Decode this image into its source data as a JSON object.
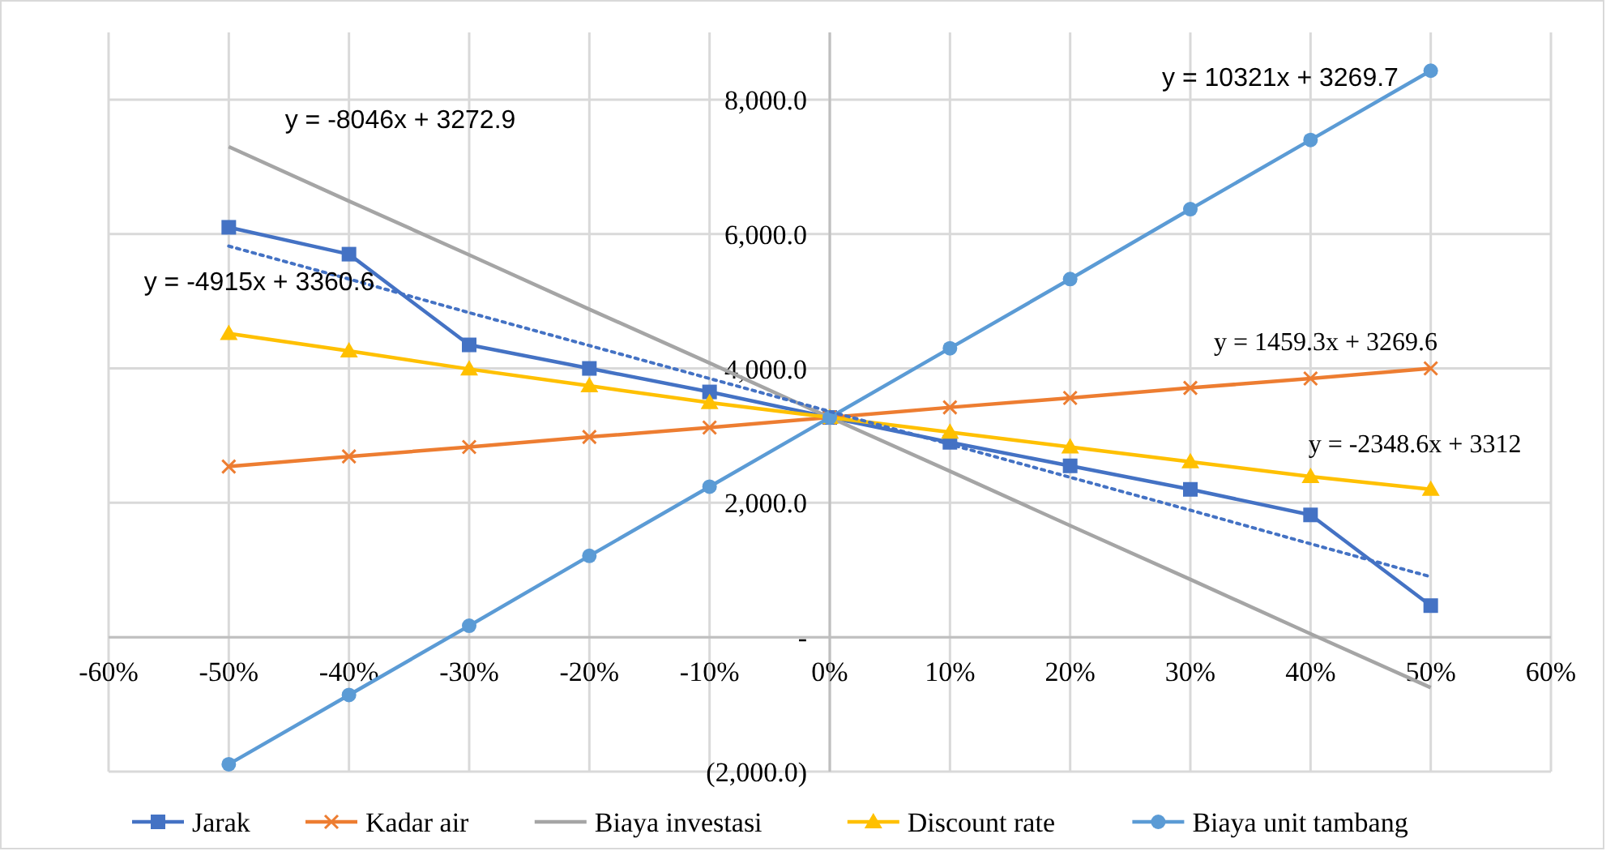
{
  "chart_data": {
    "type": "line",
    "x": [
      -50,
      -40,
      -30,
      -20,
      -10,
      0,
      10,
      20,
      30,
      40,
      50
    ],
    "xlim": [
      -60,
      60
    ],
    "xticks": [
      {
        "value": -60,
        "label": "-60%"
      },
      {
        "value": -50,
        "label": "-50%"
      },
      {
        "value": -40,
        "label": "-40%"
      },
      {
        "value": -30,
        "label": "-30%"
      },
      {
        "value": -20,
        "label": "-20%"
      },
      {
        "value": -10,
        "label": "-10%"
      },
      {
        "value": 0,
        "label": "0%"
      },
      {
        "value": 10,
        "label": "10%"
      },
      {
        "value": 20,
        "label": "20%"
      },
      {
        "value": 30,
        "label": "30%"
      },
      {
        "value": 40,
        "label": "40%"
      },
      {
        "value": 50,
        "label": "50%"
      },
      {
        "value": 60,
        "label": "60%"
      }
    ],
    "ylim": [
      -2000,
      9000
    ],
    "yticks": [
      {
        "value": -2000,
        "label": "(2,000.0)"
      },
      {
        "value": 0,
        "label": "-"
      },
      {
        "value": 2000,
        "label": "2,000.0"
      },
      {
        "value": 4000,
        "label": "4,000.0"
      },
      {
        "value": 6000,
        "label": "6,000.0"
      },
      {
        "value": 8000,
        "label": "8,000.0"
      }
    ],
    "grid": true,
    "legend": "bottom",
    "series": [
      {
        "name": "Jarak",
        "color": "#4472c4",
        "marker": "square",
        "values": [
          6100,
          5700,
          4350,
          4000,
          3650,
          3270,
          2900,
          2550,
          2200,
          1820,
          470
        ]
      },
      {
        "name": "Kadar air",
        "color": "#ed7d31",
        "marker": "cross",
        "values": [
          2540,
          2690,
          2830,
          2980,
          3120,
          3270,
          3420,
          3560,
          3710,
          3850,
          4000
        ]
      },
      {
        "name": "Biaya investasi",
        "color": "#a5a5a5",
        "marker": "none",
        "values": [
          7300,
          6490,
          5690,
          4880,
          4080,
          3270,
          2470,
          1660,
          860,
          50,
          -750
        ]
      },
      {
        "name": "Discount rate",
        "color": "#ffc000",
        "marker": "triangle",
        "values": [
          4520,
          4260,
          3990,
          3740,
          3490,
          3270,
          3050,
          2830,
          2610,
          2390,
          2200
        ]
      },
      {
        "name": "Biaya unit tambang",
        "color": "#5b9bd5",
        "marker": "circle",
        "values": [
          -1890,
          -860,
          170,
          1210,
          2240,
          3270,
          4300,
          5330,
          6370,
          7400,
          8430
        ]
      },
      {
        "color": "#4472c4",
        "marker": "none",
        "line_style": "dotted",
        "values": [
          5820,
          5330,
          4830,
          4340,
          3850,
          3360,
          2870,
          2380,
          1890,
          1390,
          900
        ]
      }
    ],
    "annotations": [
      "y = -8046x + 3272.9",
      "y = -4915x + 3360.6",
      "y = 10321x + 3269.7",
      "y = 1459.3x + 3269.6",
      "y = -2348.6x + 3312"
    ]
  }
}
